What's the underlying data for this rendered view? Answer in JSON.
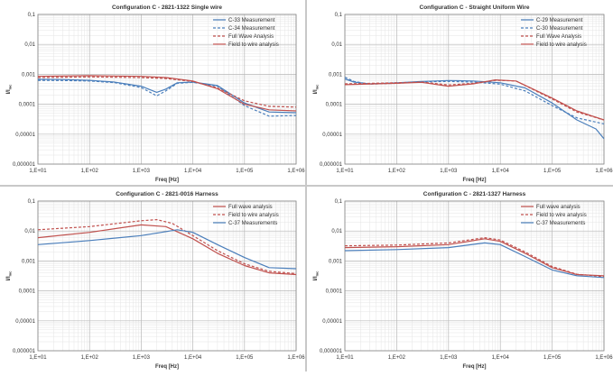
{
  "chart_data": [
    {
      "type": "line",
      "title": "Configuration C - 2821-1322 Single wire",
      "xlabel": "Freq [Hz]",
      "ylabel": "I/I",
      "ylabel_sub": "inc",
      "x_scale": "log",
      "y_scale": "log",
      "xlim": [
        10,
        1000000
      ],
      "ylim": [
        1e-06,
        0.1
      ],
      "xticks": [
        "1,E+01",
        "1,E+02",
        "1,E+03",
        "1,E+04",
        "1,E+05",
        "1,E+06"
      ],
      "yticks": [
        "0,000001",
        "0,00001",
        "0,0001",
        "0,001",
        "0,01",
        "0,1"
      ],
      "grid": true,
      "legend_position": "top-right",
      "series": [
        {
          "name": "C-33 Measurement",
          "color": "#4a7ebb",
          "dash": "solid",
          "x": [
            10,
            30,
            100,
            300,
            1000,
            2000,
            3000,
            5000,
            10000,
            30000,
            100000,
            300000,
            1000000
          ],
          "y": [
            0.00068,
            0.00067,
            0.00063,
            0.00055,
            0.0004,
            0.00025,
            0.00032,
            0.00052,
            0.00055,
            0.00042,
            0.00011,
            5.5e-05,
            5.2e-05
          ]
        },
        {
          "name": "C-34 Measurement",
          "color": "#4a7ebb",
          "dash": "dashed",
          "x": [
            10,
            30,
            100,
            300,
            1000,
            2000,
            3000,
            5000,
            10000,
            30000,
            100000,
            300000,
            1000000
          ],
          "y": [
            0.00063,
            0.00062,
            0.0006,
            0.00053,
            0.00036,
            0.00019,
            0.00028,
            0.0005,
            0.00054,
            0.0004,
            9e-05,
            4e-05,
            4.2e-05
          ]
        },
        {
          "name": "Full Wave Analysis",
          "color": "#c0504d",
          "dash": "dashed",
          "x": [
            10,
            100,
            1000,
            3000,
            10000,
            30000,
            100000,
            300000,
            1000000
          ],
          "y": [
            0.00078,
            0.00082,
            0.00078,
            0.00072,
            0.00058,
            0.00035,
            0.00013,
            8.5e-05,
            8e-05
          ]
        },
        {
          "name": "Field to wire analysis",
          "color": "#c0504d",
          "dash": "solid",
          "x": [
            10,
            100,
            1000,
            3000,
            10000,
            30000,
            100000,
            300000,
            1000000
          ],
          "y": [
            0.00085,
            0.0009,
            0.00085,
            0.00078,
            0.0006,
            0.00033,
            0.0001,
            6.5e-05,
            6e-05
          ]
        }
      ]
    },
    {
      "type": "line",
      "title": "Configuration C - Straight Uniform Wire",
      "xlabel": "Freq [Hz]",
      "ylabel": "I/I",
      "ylabel_sub": "inc",
      "x_scale": "log",
      "y_scale": "log",
      "xlim": [
        10,
        1000000
      ],
      "ylim": [
        1e-06,
        0.1
      ],
      "xticks": [
        "1,E+01",
        "1,E+02",
        "1,E+03",
        "1,E+04",
        "1,E+05",
        "1,E+06"
      ],
      "yticks": [
        "0,000001",
        "0,00001",
        "0,0001",
        "0,001",
        "0,01",
        "0,1"
      ],
      "grid": true,
      "legend_position": "top-right",
      "series": [
        {
          "name": "C-29 Measurement",
          "color": "#4a7ebb",
          "dash": "solid",
          "x": [
            10,
            15,
            30,
            100,
            300,
            1000,
            3000,
            10000,
            30000,
            100000,
            300000,
            700000,
            1000000
          ],
          "y": [
            0.0007,
            0.00055,
            0.00048,
            0.00052,
            0.00058,
            0.00062,
            0.0006,
            0.00052,
            0.00035,
            0.00011,
            3e-05,
            1.5e-05,
            7e-06
          ]
        },
        {
          "name": "C-30 Measurement",
          "color": "#4a7ebb",
          "dash": "dashed",
          "x": [
            10,
            15,
            30,
            100,
            300,
            1000,
            3000,
            10000,
            30000,
            100000,
            300000,
            1000000
          ],
          "y": [
            0.0008,
            0.00058,
            0.00047,
            0.0005,
            0.00056,
            0.00058,
            0.00055,
            0.00047,
            0.00028,
            9e-05,
            3.5e-05,
            2.2e-05
          ]
        },
        {
          "name": "Full Wave Analysis",
          "color": "#c0504d",
          "dash": "dashed",
          "x": [
            10,
            100,
            300,
            1000,
            3000,
            8000,
            20000,
            100000,
            300000,
            1000000
          ],
          "y": [
            0.00048,
            0.00052,
            0.00055,
            0.00044,
            0.0005,
            0.00063,
            0.0006,
            0.00015,
            5.5e-05,
            3e-05
          ]
        },
        {
          "name": "Field to wire analysis",
          "color": "#c0504d",
          "dash": "solid",
          "x": [
            10,
            100,
            300,
            1000,
            3000,
            8000,
            20000,
            100000,
            300000,
            1000000
          ],
          "y": [
            0.00045,
            0.0005,
            0.00054,
            0.0004,
            0.00048,
            0.00065,
            0.0006,
            0.00016,
            6e-05,
            3e-05
          ]
        }
      ]
    },
    {
      "type": "line",
      "title": "Configuration C - 2821-0016 Harness",
      "xlabel": "Freq [Hz]",
      "ylabel": "I/I",
      "ylabel_sub": "inc",
      "x_scale": "log",
      "y_scale": "log",
      "xlim": [
        10,
        1000000
      ],
      "ylim": [
        1e-06,
        0.1
      ],
      "xticks": [
        "1,E+01",
        "1,E+02",
        "1,E+03",
        "1,E+04",
        "1,E+05",
        "1,E+06"
      ],
      "yticks": [
        "0,000001",
        "0,00001",
        "0,0001",
        "0,001",
        "0,01",
        "0,1"
      ],
      "grid": true,
      "legend_position": "top-right",
      "series": [
        {
          "name": "Full wave analysis",
          "color": "#c0504d",
          "dash": "solid",
          "x": [
            10,
            100,
            1000,
            3000,
            10000,
            30000,
            100000,
            300000,
            1000000
          ],
          "y": [
            0.006,
            0.009,
            0.016,
            0.014,
            0.0055,
            0.0018,
            0.0007,
            0.0004,
            0.00035
          ]
        },
        {
          "name": "Field to wire analysis",
          "color": "#c0504d",
          "dash": "dashed",
          "x": [
            10,
            100,
            1000,
            2000,
            4000,
            10000,
            30000,
            100000,
            300000,
            1000000
          ],
          "y": [
            0.011,
            0.014,
            0.022,
            0.024,
            0.018,
            0.007,
            0.0022,
            0.0008,
            0.00045,
            0.00038
          ]
        },
        {
          "name": "C-37 Measurements",
          "color": "#4a7ebb",
          "dash": "solid",
          "x": [
            10,
            100,
            1000,
            5000,
            10000,
            30000,
            100000,
            300000,
            1000000
          ],
          "y": [
            0.0035,
            0.0048,
            0.007,
            0.011,
            0.009,
            0.0035,
            0.0013,
            0.0006,
            0.00055
          ]
        }
      ]
    },
    {
      "type": "line",
      "title": "Configuration C - 2821-1327 Harness",
      "xlabel": "Freq [Hz]",
      "ylabel": "I/I",
      "ylabel_sub": "inc",
      "x_scale": "log",
      "y_scale": "log",
      "xlim": [
        10,
        1000000
      ],
      "ylim": [
        1e-06,
        0.1
      ],
      "xticks": [
        "1,E+01",
        "1,E+02",
        "1,E+03",
        "1,E+04",
        "1,E+05",
        "1,E+06"
      ],
      "yticks": [
        "0,000001",
        "0,00001",
        "0,0001",
        "0,001",
        "0,01",
        "0,1"
      ],
      "grid": true,
      "legend_position": "top-right",
      "series": [
        {
          "name": "Full wave analysis",
          "color": "#c0504d",
          "dash": "solid",
          "x": [
            10,
            100,
            1000,
            5000,
            10000,
            30000,
            100000,
            300000,
            1000000
          ],
          "y": [
            0.0028,
            0.003,
            0.0035,
            0.0055,
            0.0045,
            0.0018,
            0.0006,
            0.00035,
            0.00032
          ]
        },
        {
          "name": "Field to wire analysis",
          "color": "#c0504d",
          "dash": "dashed",
          "x": [
            10,
            100,
            1000,
            5000,
            10000,
            30000,
            100000,
            300000,
            1000000
          ],
          "y": [
            0.0032,
            0.0034,
            0.004,
            0.006,
            0.005,
            0.002,
            0.00065,
            0.00036,
            0.0003
          ]
        },
        {
          "name": "C-37 Measurements",
          "color": "#4a7ebb",
          "dash": "solid",
          "x": [
            10,
            100,
            1000,
            5000,
            10000,
            30000,
            100000,
            300000,
            1000000
          ],
          "y": [
            0.0022,
            0.0024,
            0.0028,
            0.004,
            0.0035,
            0.0014,
            0.0005,
            0.00032,
            0.00028
          ]
        }
      ]
    }
  ]
}
